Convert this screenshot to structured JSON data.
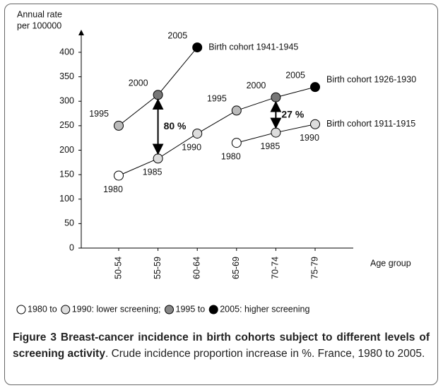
{
  "chart_data": {
    "type": "line",
    "y_label_lines": [
      "Annual rate",
      "per 100000"
    ],
    "x_label": "Age group",
    "categories": [
      "50-54",
      "55-59",
      "60-64",
      "65-69",
      "70-74",
      "75-79"
    ],
    "ylim": [
      0,
      400
    ],
    "yticks": [
      0,
      50,
      100,
      150,
      200,
      250,
      300,
      350,
      400
    ],
    "series": [
      {
        "name": "Birth cohort 1941-1945",
        "color": "#000",
        "values": [
          250,
          313,
          410,
          null,
          null,
          null
        ],
        "point_labels": [
          "1995",
          "2000",
          "2005",
          null,
          null,
          null
        ],
        "point_colors": [
          "#bbb",
          "#777",
          "#000",
          null,
          null,
          null
        ]
      },
      {
        "name": "Birth cohort 1926-1930",
        "color": "#000",
        "values": [
          148,
          183,
          234,
          281,
          308,
          329
        ],
        "point_labels": [
          "1980",
          "1985",
          "1990",
          "1995",
          "2000",
          "2005"
        ],
        "point_colors": [
          "#fff",
          "#ddd",
          "#ddd",
          "#bbb",
          "#777",
          "#000"
        ]
      },
      {
        "name": "Birth cohort 1911-1915",
        "color": "#000",
        "values": [
          null,
          null,
          null,
          215,
          236,
          253
        ],
        "point_labels": [
          null,
          null,
          null,
          "1980",
          "1985",
          "1990"
        ],
        "point_colors": [
          null,
          null,
          null,
          "#fff",
          "#ddd",
          "#ddd"
        ]
      }
    ],
    "annotations": [
      "80 %",
      "27 %"
    ],
    "legend": [
      {
        "color": "#fff",
        "label": "1980 to"
      },
      {
        "color": "#ddd",
        "label": "1990: lower screening;"
      },
      {
        "color": "#888",
        "label": "1995 to"
      },
      {
        "color": "#000",
        "label": "2005: higher screening"
      }
    ]
  },
  "caption": {
    "bold": "Figure 3 Breast-cancer incidence in birth cohorts subject to different levels of screening activity",
    "text": ". Crude incidence proportion increase in %. France, 1980 to 2005."
  }
}
